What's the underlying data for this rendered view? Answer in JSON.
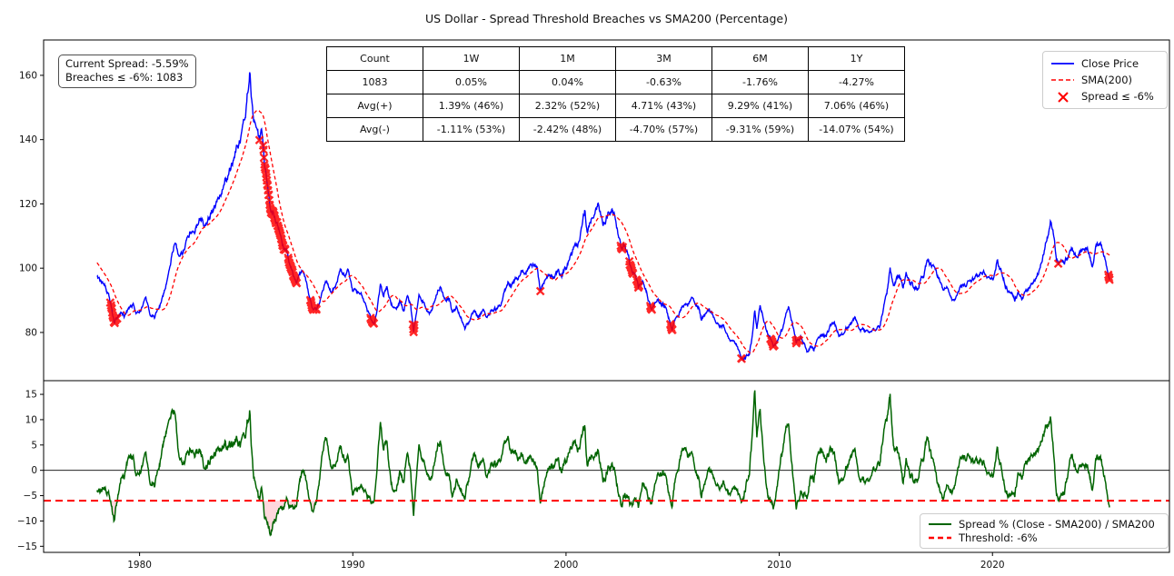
{
  "title": "US Dollar - Spread Threshold Breaches vs SMA200 (Percentage)",
  "annotation": {
    "current_spread": "Current Spread: -5.59%",
    "breaches": "Breaches ≤ -6%: 1083"
  },
  "stats_table": {
    "headers": [
      "Count",
      "1W",
      "1M",
      "3M",
      "6M",
      "1Y"
    ],
    "rows": [
      [
        "1083",
        "0.05%",
        "0.04%",
        "-0.63%",
        "-1.76%",
        "-4.27%"
      ],
      [
        "Avg(+)",
        "1.39% (46%)",
        "2.32% (52%)",
        "4.71% (43%)",
        "9.29% (41%)",
        "7.06% (46%)"
      ],
      [
        "Avg(-)",
        "-1.11% (53%)",
        "-2.42% (48%)",
        "-4.70% (57%)",
        "-9.31% (59%)",
        "-14.07% (54%)"
      ]
    ]
  },
  "legend_top": [
    {
      "label": "Close Price",
      "color": "#0000ff",
      "style": "solid"
    },
    {
      "label": "SMA(200)",
      "color": "#ff0000",
      "style": "dashed"
    },
    {
      "label": "Spread ≤ -6%",
      "color": "#ff0000",
      "style": "x-marker"
    }
  ],
  "legend_bottom": [
    {
      "label": "Spread % (Close - SMA200) / SMA200",
      "color": "#006400",
      "style": "solid"
    },
    {
      "label": "Threshold: -6%",
      "color": "#ff0000",
      "style": "dashed"
    }
  ],
  "chart_data": {
    "type": "line",
    "title": "US Dollar - Spread Threshold Breaches vs SMA200 (Percentage)",
    "x_axis": {
      "ticks": [
        1980,
        1990,
        2000,
        2010,
        2020
      ],
      "lim": [
        1975.5,
        2028.3
      ]
    },
    "threshold_pct": -6,
    "sma_window_weeks": 40,
    "plot_start_year": 1978.0,
    "panels": [
      {
        "name": "price",
        "yticks": [
          80,
          100,
          120,
          140,
          160
        ],
        "ylim": [
          65,
          171
        ],
        "series": [
          {
            "name": "Close Price",
            "color": "#0000ff",
            "style": "solid"
          },
          {
            "name": "SMA(200)",
            "color": "#ff0000",
            "style": "dashed"
          },
          {
            "name": "Spread ≤ -6%",
            "color": "#ff0000",
            "style": "x-markers"
          }
        ]
      },
      {
        "name": "spread",
        "yticks": [
          -15,
          -10,
          -5,
          0,
          5,
          10,
          15
        ],
        "ylim": [
          -16.2,
          17.7
        ],
        "zero_line": 0,
        "breach_fill_color": "#ffb6c1",
        "series": [
          {
            "name": "Spread % (Close - SMA200) / SMA200",
            "color": "#006400",
            "style": "solid"
          },
          {
            "name": "Threshold: -6%",
            "color": "#ff0000",
            "style": "dashed",
            "value": -6
          }
        ]
      }
    ],
    "close_keypoints": [
      [
        1977.2,
        104.5
      ],
      [
        1977.5,
        103
      ],
      [
        1977.8,
        100.5
      ],
      [
        1977.95,
        98.5
      ],
      [
        1978.0,
        97
      ],
      [
        1978.2,
        96
      ],
      [
        1978.35,
        95.5
      ],
      [
        1978.5,
        93
      ],
      [
        1978.65,
        89.5
      ],
      [
        1978.8,
        83
      ],
      [
        1978.9,
        84.5
      ],
      [
        1979.0,
        85.5
      ],
      [
        1979.15,
        86.5
      ],
      [
        1979.3,
        85.5
      ],
      [
        1979.5,
        87
      ],
      [
        1979.7,
        88.5
      ],
      [
        1979.9,
        86
      ],
      [
        1980.1,
        87.5
      ],
      [
        1980.3,
        90.5
      ],
      [
        1980.5,
        85
      ],
      [
        1980.7,
        84.5
      ],
      [
        1980.9,
        87.5
      ],
      [
        1981.1,
        91
      ],
      [
        1981.3,
        97
      ],
      [
        1981.5,
        103
      ],
      [
        1981.65,
        108.5
      ],
      [
        1981.8,
        104.5
      ],
      [
        1982.0,
        104.5
      ],
      [
        1982.2,
        109
      ],
      [
        1982.4,
        111.5
      ],
      [
        1982.6,
        112
      ],
      [
        1982.8,
        116
      ],
      [
        1983.0,
        113.5
      ],
      [
        1983.2,
        114.5
      ],
      [
        1983.4,
        117.5
      ],
      [
        1983.6,
        119.5
      ],
      [
        1983.8,
        122
      ],
      [
        1984.0,
        126.5
      ],
      [
        1984.2,
        129.5
      ],
      [
        1984.4,
        133
      ],
      [
        1984.6,
        138
      ],
      [
        1984.75,
        141
      ],
      [
        1984.85,
        144
      ],
      [
        1985.0,
        151
      ],
      [
        1985.1,
        158
      ],
      [
        1985.17,
        164.5
      ],
      [
        1985.25,
        154
      ],
      [
        1985.35,
        148
      ],
      [
        1985.5,
        143
      ],
      [
        1985.62,
        138.5
      ],
      [
        1985.72,
        141
      ],
      [
        1985.85,
        133
      ],
      [
        1986.0,
        126
      ],
      [
        1986.15,
        119
      ],
      [
        1986.3,
        117
      ],
      [
        1986.45,
        114
      ],
      [
        1986.6,
        111.5
      ],
      [
        1986.75,
        107
      ],
      [
        1986.9,
        105.5
      ],
      [
        1987.05,
        100.5
      ],
      [
        1987.2,
        98
      ],
      [
        1987.35,
        96.5
      ],
      [
        1987.5,
        98.5
      ],
      [
        1987.65,
        99
      ],
      [
        1987.8,
        96
      ],
      [
        1988.0,
        90
      ],
      [
        1988.15,
        86.5
      ],
      [
        1988.3,
        87.5
      ],
      [
        1988.5,
        90.5
      ],
      [
        1988.65,
        94
      ],
      [
        1988.8,
        95.5
      ],
      [
        1989.0,
        92.5
      ],
      [
        1989.2,
        95
      ],
      [
        1989.45,
        100
      ],
      [
        1989.6,
        98
      ],
      [
        1989.8,
        99
      ],
      [
        1990.0,
        93
      ],
      [
        1990.2,
        92
      ],
      [
        1990.4,
        91.5
      ],
      [
        1990.6,
        88
      ],
      [
        1990.8,
        85
      ],
      [
        1991.0,
        82.5
      ],
      [
        1991.15,
        88.5
      ],
      [
        1991.3,
        95
      ],
      [
        1991.45,
        91.5
      ],
      [
        1991.6,
        94.5
      ],
      [
        1991.8,
        89
      ],
      [
        1992.0,
        87.5
      ],
      [
        1992.2,
        89.5
      ],
      [
        1992.4,
        87
      ],
      [
        1992.55,
        91.5
      ],
      [
        1992.7,
        89
      ],
      [
        1992.85,
        80.5
      ],
      [
        1993.0,
        87
      ],
      [
        1993.1,
        92
      ],
      [
        1993.3,
        90
      ],
      [
        1993.5,
        87.5
      ],
      [
        1993.65,
        86
      ],
      [
        1993.8,
        89
      ],
      [
        1993.95,
        92.5
      ],
      [
        1994.1,
        94.5
      ],
      [
        1994.3,
        89.5
      ],
      [
        1994.5,
        91
      ],
      [
        1994.65,
        86.5
      ],
      [
        1994.85,
        88
      ],
      [
        1995.05,
        85
      ],
      [
        1995.25,
        81
      ],
      [
        1995.4,
        82.5
      ],
      [
        1995.55,
        84.5
      ],
      [
        1995.7,
        87
      ],
      [
        1995.9,
        85
      ],
      [
        1996.1,
        86.5
      ],
      [
        1996.3,
        85.5
      ],
      [
        1996.5,
        87
      ],
      [
        1996.7,
        87
      ],
      [
        1996.9,
        88.5
      ],
      [
        1997.1,
        92
      ],
      [
        1997.3,
        96
      ],
      [
        1997.5,
        95
      ],
      [
        1997.7,
        96.5
      ],
      [
        1997.9,
        99.5
      ],
      [
        1998.1,
        99
      ],
      [
        1998.3,
        101
      ],
      [
        1998.5,
        102
      ],
      [
        1998.65,
        100.5
      ],
      [
        1998.8,
        92.5
      ],
      [
        1999.0,
        96
      ],
      [
        1999.2,
        98
      ],
      [
        1999.4,
        97
      ],
      [
        1999.6,
        99
      ],
      [
        1999.8,
        98
      ],
      [
        2000.0,
        100.5
      ],
      [
        2000.2,
        104
      ],
      [
        2000.4,
        106
      ],
      [
        2000.6,
        108.5
      ],
      [
        2000.75,
        113
      ],
      [
        2000.88,
        118
      ],
      [
        2001.0,
        110.5
      ],
      [
        2001.2,
        115
      ],
      [
        2001.4,
        117
      ],
      [
        2001.5,
        119
      ],
      [
        2001.62,
        116
      ],
      [
        2001.75,
        113.5
      ],
      [
        2001.9,
        116.5
      ],
      [
        2002.05,
        118.5
      ],
      [
        2002.15,
        120
      ],
      [
        2002.3,
        117
      ],
      [
        2002.45,
        110
      ],
      [
        2002.6,
        106.5
      ],
      [
        2002.75,
        107.5
      ],
      [
        2002.9,
        104.5
      ],
      [
        2003.05,
        100
      ],
      [
        2003.2,
        98.5
      ],
      [
        2003.4,
        94
      ],
      [
        2003.6,
        96.5
      ],
      [
        2003.8,
        92
      ],
      [
        2004.0,
        86.5
      ],
      [
        2004.1,
        88.5
      ],
      [
        2004.3,
        90.5
      ],
      [
        2004.5,
        89
      ],
      [
        2004.7,
        88
      ],
      [
        2004.85,
        84
      ],
      [
        2004.97,
        81
      ],
      [
        2005.1,
        84
      ],
      [
        2005.3,
        86
      ],
      [
        2005.5,
        89
      ],
      [
        2005.7,
        88
      ],
      [
        2005.9,
        91.5
      ],
      [
        2006.05,
        89.5
      ],
      [
        2006.2,
        88.5
      ],
      [
        2006.35,
        84
      ],
      [
        2006.5,
        85.5
      ],
      [
        2006.7,
        86.5
      ],
      [
        2006.9,
        85
      ],
      [
        2007.1,
        83.5
      ],
      [
        2007.3,
        82
      ],
      [
        2007.5,
        81
      ],
      [
        2007.7,
        78
      ],
      [
        2007.9,
        76.5
      ],
      [
        2008.05,
        75.5
      ],
      [
        2008.2,
        72.5
      ],
      [
        2008.33,
        71.5
      ],
      [
        2008.45,
        72.5
      ],
      [
        2008.6,
        73.5
      ],
      [
        2008.72,
        78
      ],
      [
        2008.85,
        86.5
      ],
      [
        2008.95,
        81.5
      ],
      [
        2009.1,
        88.5
      ],
      [
        2009.25,
        85
      ],
      [
        2009.4,
        80.5
      ],
      [
        2009.55,
        78.5
      ],
      [
        2009.75,
        75.5
      ],
      [
        2009.95,
        77.5
      ],
      [
        2010.15,
        81
      ],
      [
        2010.35,
        86.5
      ],
      [
        2010.45,
        88
      ],
      [
        2010.6,
        83
      ],
      [
        2010.8,
        77
      ],
      [
        2011.0,
        79
      ],
      [
        2011.15,
        77
      ],
      [
        2011.3,
        73.5
      ],
      [
        2011.45,
        75
      ],
      [
        2011.6,
        74
      ],
      [
        2011.75,
        77
      ],
      [
        2011.9,
        78.5
      ],
      [
        2012.05,
        79.5
      ],
      [
        2012.2,
        79
      ],
      [
        2012.4,
        82.5
      ],
      [
        2012.6,
        82.5
      ],
      [
        2012.8,
        79.5
      ],
      [
        2013.0,
        79.5
      ],
      [
        2013.2,
        82
      ],
      [
        2013.4,
        83
      ],
      [
        2013.55,
        84.5
      ],
      [
        2013.7,
        81.5
      ],
      [
        2013.9,
        80.5
      ],
      [
        2014.1,
        80
      ],
      [
        2014.3,
        79.5
      ],
      [
        2014.5,
        80
      ],
      [
        2014.7,
        81.5
      ],
      [
        2014.9,
        88
      ],
      [
        2015.05,
        92
      ],
      [
        2015.2,
        99.5
      ],
      [
        2015.35,
        94
      ],
      [
        2015.5,
        96.5
      ],
      [
        2015.65,
        97
      ],
      [
        2015.8,
        94
      ],
      [
        2015.95,
        98.5
      ],
      [
        2016.1,
        96
      ],
      [
        2016.3,
        94
      ],
      [
        2016.5,
        93.5
      ],
      [
        2016.65,
        96.5
      ],
      [
        2016.8,
        98.5
      ],
      [
        2016.95,
        103
      ],
      [
        2017.1,
        100.5
      ],
      [
        2017.3,
        99.5
      ],
      [
        2017.5,
        97
      ],
      [
        2017.7,
        93.5
      ],
      [
        2017.9,
        94
      ],
      [
        2018.05,
        91
      ],
      [
        2018.2,
        89
      ],
      [
        2018.4,
        92.5
      ],
      [
        2018.6,
        95
      ],
      [
        2018.8,
        95
      ],
      [
        2019.0,
        96.5
      ],
      [
        2019.2,
        97
      ],
      [
        2019.4,
        97.5
      ],
      [
        2019.6,
        98.5
      ],
      [
        2019.8,
        97.5
      ],
      [
        2020.0,
        97.5
      ],
      [
        2020.15,
        99
      ],
      [
        2020.22,
        102.5
      ],
      [
        2020.35,
        100
      ],
      [
        2020.5,
        97
      ],
      [
        2020.7,
        93.5
      ],
      [
        2020.9,
        92.5
      ],
      [
        2021.05,
        90
      ],
      [
        2021.2,
        92
      ],
      [
        2021.4,
        90.5
      ],
      [
        2021.6,
        92.5
      ],
      [
        2021.8,
        94.5
      ],
      [
        2022.0,
        96
      ],
      [
        2022.2,
        99
      ],
      [
        2022.4,
        104
      ],
      [
        2022.55,
        109
      ],
      [
        2022.72,
        114
      ],
      [
        2022.85,
        110.5
      ],
      [
        2023.0,
        103.5
      ],
      [
        2023.1,
        101.5
      ],
      [
        2023.3,
        102
      ],
      [
        2023.5,
        102.5
      ],
      [
        2023.7,
        106.5
      ],
      [
        2023.9,
        103.5
      ],
      [
        2024.1,
        104
      ],
      [
        2024.3,
        106
      ],
      [
        2024.5,
        105
      ],
      [
        2024.7,
        100.5
      ],
      [
        2024.85,
        106.5
      ],
      [
        2025.0,
        108.5
      ],
      [
        2025.12,
        107
      ],
      [
        2025.25,
        104
      ],
      [
        2025.4,
        99.5
      ],
      [
        2025.5,
        96.5
      ]
    ]
  }
}
